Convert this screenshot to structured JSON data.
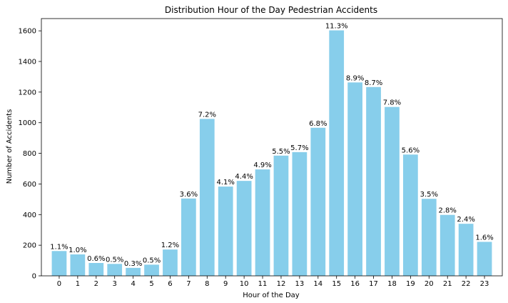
{
  "chart_data": {
    "type": "bar",
    "title": "Distribution Hour of the Day Pedestrian Accidents",
    "xlabel": "Hour of the Day",
    "ylabel": "Number of Accidents",
    "categories": [
      "0",
      "1",
      "2",
      "3",
      "4",
      "5",
      "6",
      "7",
      "8",
      "9",
      "10",
      "11",
      "12",
      "13",
      "14",
      "15",
      "16",
      "17",
      "18",
      "19",
      "20",
      "21",
      "22",
      "23"
    ],
    "values": [
      162,
      140,
      84,
      78,
      52,
      73,
      172,
      505,
      1025,
      583,
      620,
      695,
      785,
      808,
      967,
      1603,
      1263,
      1233,
      1103,
      792,
      503,
      398,
      340,
      222
    ],
    "data_labels": [
      "1.1%",
      "1.0%",
      "0.6%",
      "0.5%",
      "0.3%",
      "0.5%",
      "1.2%",
      "3.6%",
      "7.2%",
      "4.1%",
      "4.4%",
      "4.9%",
      "5.5%",
      "5.7%",
      "6.8%",
      "11.3%",
      "8.9%",
      "8.7%",
      "7.8%",
      "5.6%",
      "3.5%",
      "2.8%",
      "2.4%",
      "1.6%"
    ],
    "yticks": [
      "0",
      "200",
      "400",
      "600",
      "800",
      "1000",
      "1200",
      "1400",
      "1600"
    ],
    "ylim": [
      0,
      1680
    ],
    "grid": false,
    "bar_color": "#87ceeb"
  }
}
